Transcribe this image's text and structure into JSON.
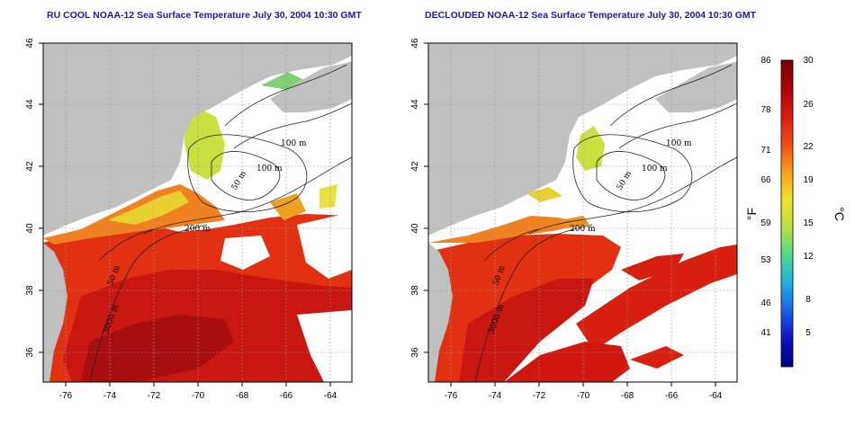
{
  "left_panel": {
    "title": "RU COOL NOAA-12 Sea Surface Temperature July 30, 2004 10:30 GMT",
    "x_ticks": [
      "-76",
      "-74",
      "-72",
      "-70",
      "-68",
      "-66",
      "-64"
    ],
    "y_ticks": [
      "46",
      "44",
      "42",
      "40",
      "38",
      "36"
    ],
    "contour_labels": [
      "100 m",
      "100 m",
      "50 m",
      "200 m",
      "50 m",
      "3000 m"
    ]
  },
  "right_panel": {
    "title": "DECLOUDED NOAA-12 Sea Surface Temperature July 30, 2004 10:30 GMT",
    "x_ticks": [
      "-76",
      "-74",
      "-72",
      "-70",
      "-68",
      "-66",
      "-64"
    ],
    "y_ticks": [
      "46",
      "44",
      "42",
      "40",
      "38",
      "36"
    ],
    "contour_labels": [
      "100 m",
      "100 m",
      "50 m",
      "200 m",
      "50 m",
      "3000 m"
    ]
  },
  "colorbar": {
    "fahrenheit_ticks": [
      "86",
      "78",
      "71",
      "66",
      "59",
      "53",
      "46",
      "41"
    ],
    "celsius_ticks": [
      "30",
      "26",
      "22",
      "19",
      "15",
      "12",
      "8",
      "5"
    ],
    "left_unit": "°F",
    "right_unit": "°C",
    "colors": [
      "#7a0000",
      "#b00000",
      "#dd1a10",
      "#f04a18",
      "#f8a020",
      "#f0e028",
      "#b8e040",
      "#50d890",
      "#20b0e0",
      "#1a60e8",
      "#1010c0",
      "#000080"
    ]
  },
  "map_colors": {
    "land": "#c0c0c0",
    "cloud": "#ffffff",
    "warm": "#e02810",
    "hot": "#c01010",
    "orange": "#f08020",
    "yellow": "#e8e040",
    "green": "#a0d040"
  }
}
